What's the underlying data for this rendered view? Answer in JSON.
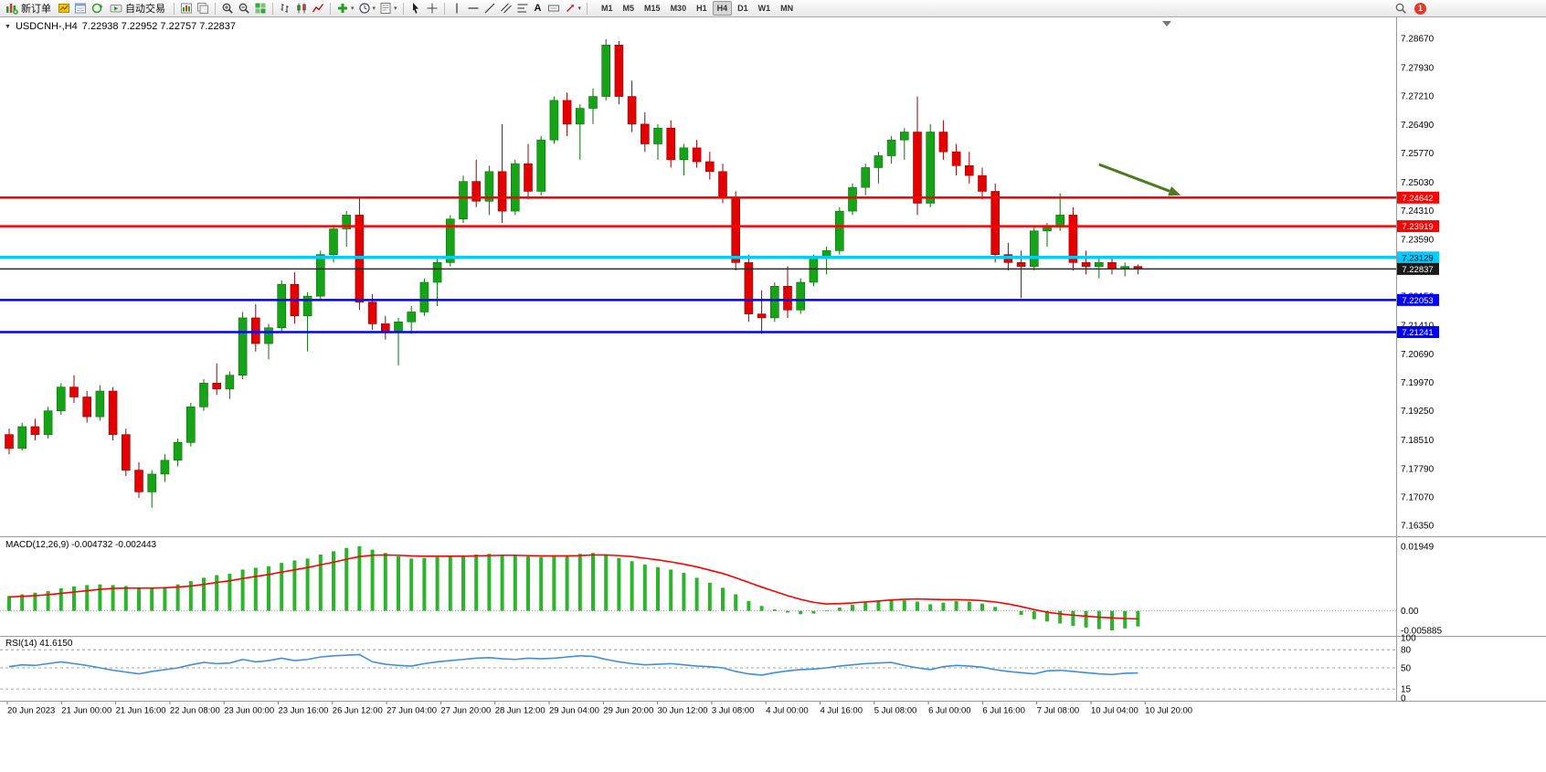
{
  "toolbar": {
    "new_order_label": "新订单",
    "auto_trading_label": "自动交易",
    "text_tool_label": "A",
    "timeframes": [
      "M1",
      "M5",
      "M15",
      "M30",
      "H1",
      "H4",
      "D1",
      "W1",
      "MN"
    ],
    "active_timeframe": "H4",
    "notification_count": "1"
  },
  "chart": {
    "symbol_period": "USDCNH-,H4",
    "ohlc_text": "7.22938 7.22952 7.22757 7.22837"
  },
  "chart_data": [
    {
      "type": "candlestick",
      "title": "USDCNH-,H4",
      "symbol": "USDCNH-",
      "timeframe": "H4",
      "current_open": "7.22938",
      "current_high": "7.22952",
      "current_low": "7.22757",
      "current_close": "7.22837",
      "up_color": "#17A317",
      "down_color": "#E50000",
      "up_stroke": "#0A700A",
      "down_stroke": "#9B0000",
      "y_max": 7.292,
      "y_min": 7.161,
      "y_axis_labels": [
        "7.28670",
        "7.27930",
        "7.27210",
        "7.26490",
        "7.25770",
        "7.25030",
        "7.24310",
        "7.23590",
        "7.22870",
        "7.22150",
        "7.21410",
        "7.20690",
        "7.19970",
        "7.19250",
        "7.18510",
        "7.17790",
        "7.17070",
        "7.16350"
      ],
      "x_labels": [
        "20 Jun 2023",
        "21 Jun 00:00",
        "21 Jun 16:00",
        "22 Jun 08:00",
        "23 Jun 00:00",
        "23 Jun 16:00",
        "26 Jun 12:00",
        "27 Jun 04:00",
        "27 Jun 20:00",
        "28 Jun 12:00",
        "29 Jun 04:00",
        "29 Jun 20:00",
        "30 Jun 12:00",
        "3 Jul 08:00",
        "4 Jul 00:00",
        "4 Jul 16:00",
        "5 Jul 08:00",
        "6 Jul 00:00",
        "6 Jul 16:00",
        "7 Jul 08:00",
        "10 Jul 04:00",
        "10 Jul 20:00"
      ],
      "hlines": [
        {
          "price": 7.24642,
          "label": "7.24642",
          "color": "#FF0000",
          "width": 2.5,
          "tag_bg": "#FF0000",
          "tag_fg": "#FFFFFF"
        },
        {
          "price": 7.23919,
          "label": "7.23919",
          "color": "#FF0000",
          "width": 2.5,
          "tag_bg": "#FF0000",
          "tag_fg": "#FFFFFF"
        },
        {
          "price": 7.23129,
          "label": "7.23129",
          "color": "#00CCFF",
          "width": 3.5,
          "tag_bg": "#00CCFF",
          "tag_fg": "#000000"
        },
        {
          "price": 7.22837,
          "label": "7.22837",
          "color": "#2B2B2B",
          "width": 1.5,
          "tag_bg": "#1A1A1A",
          "tag_fg": "#FFFFFF"
        },
        {
          "price": 7.22053,
          "label": "7.22053",
          "color": "#0000FF",
          "width": 2.5,
          "tag_bg": "#0000FF",
          "tag_fg": "#FFFFFF"
        },
        {
          "price": 7.21241,
          "label": "7.21241",
          "color": "#0000FF",
          "width": 2.5,
          "tag_bg": "#0000FF",
          "tag_fg": "#FFFFFF"
        }
      ],
      "arrow": {
        "from_bar": 84,
        "from_price": 7.2548,
        "to_bar": 90.3,
        "to_price": 7.247,
        "color": "#4C7A1F",
        "width": 3
      },
      "candles": [
        [
          7.1865,
          7.188,
          7.1815,
          7.183
        ],
        [
          7.183,
          7.1895,
          7.1825,
          7.1885
        ],
        [
          7.1885,
          7.1905,
          7.185,
          7.1865
        ],
        [
          7.1865,
          7.1935,
          7.1855,
          7.1925
        ],
        [
          7.1925,
          7.1995,
          7.1915,
          7.1985
        ],
        [
          7.1985,
          7.2015,
          7.1945,
          7.196
        ],
        [
          7.196,
          7.1975,
          7.1895,
          7.191
        ],
        [
          7.191,
          7.199,
          7.19,
          7.1975
        ],
        [
          7.1975,
          7.1985,
          7.185,
          7.1865
        ],
        [
          7.1865,
          7.188,
          7.176,
          7.1775
        ],
        [
          7.1775,
          7.1795,
          7.1705,
          7.172
        ],
        [
          7.172,
          7.1775,
          7.168,
          7.1765
        ],
        [
          7.1765,
          7.1815,
          7.1745,
          7.18
        ],
        [
          7.18,
          7.1855,
          7.1785,
          7.1845
        ],
        [
          7.1845,
          7.1945,
          7.1835,
          7.1935
        ],
        [
          7.1935,
          7.2005,
          7.1925,
          7.1995
        ],
        [
          7.1995,
          7.2045,
          7.1965,
          7.198
        ],
        [
          7.198,
          7.2025,
          7.1955,
          7.2015
        ],
        [
          7.2015,
          7.2175,
          7.2005,
          7.216
        ],
        [
          7.216,
          7.2195,
          7.2075,
          7.2095
        ],
        [
          7.2095,
          7.2145,
          7.2055,
          7.2135
        ],
        [
          7.2135,
          7.2255,
          7.2125,
          7.2245
        ],
        [
          7.2245,
          7.2275,
          7.2145,
          7.2165
        ],
        [
          7.2165,
          7.2225,
          7.2075,
          7.2215
        ],
        [
          7.2215,
          7.233,
          7.2205,
          7.232
        ],
        [
          7.232,
          7.2395,
          7.23,
          7.2385
        ],
        [
          7.2385,
          7.243,
          7.234,
          7.242
        ],
        [
          7.242,
          7.2465,
          7.218,
          7.22
        ],
        [
          7.22,
          7.222,
          7.213,
          7.2145
        ],
        [
          7.2145,
          7.2165,
          7.2105,
          7.2125
        ],
        [
          7.2125,
          7.216,
          7.204,
          7.215
        ],
        [
          7.215,
          7.219,
          7.212,
          7.2175
        ],
        [
          7.2175,
          7.226,
          7.2165,
          7.225
        ],
        [
          7.225,
          7.231,
          7.219,
          7.23
        ],
        [
          7.23,
          7.242,
          7.229,
          7.241
        ],
        [
          7.241,
          7.252,
          7.24,
          7.2505
        ],
        [
          7.2505,
          7.256,
          7.244,
          7.2455
        ],
        [
          7.2455,
          7.2545,
          7.242,
          7.253
        ],
        [
          7.253,
          7.265,
          7.24,
          7.243
        ],
        [
          7.243,
          7.256,
          7.242,
          7.255
        ],
        [
          7.255,
          7.26,
          7.246,
          7.248
        ],
        [
          7.248,
          7.262,
          7.247,
          7.261
        ],
        [
          7.261,
          7.272,
          7.26,
          7.271
        ],
        [
          7.271,
          7.273,
          7.262,
          7.265
        ],
        [
          7.265,
          7.27,
          7.256,
          7.269
        ],
        [
          7.269,
          7.274,
          7.265,
          7.272
        ],
        [
          7.272,
          7.2865,
          7.271,
          7.285
        ],
        [
          7.285,
          7.286,
          7.27,
          7.272
        ],
        [
          7.272,
          7.276,
          7.263,
          7.265
        ],
        [
          7.265,
          7.268,
          7.258,
          7.26
        ],
        [
          7.26,
          7.265,
          7.256,
          7.264
        ],
        [
          7.264,
          7.266,
          7.254,
          7.256
        ],
        [
          7.256,
          7.26,
          7.252,
          7.259
        ],
        [
          7.259,
          7.261,
          7.254,
          7.2555
        ],
        [
          7.2555,
          7.258,
          7.251,
          7.253
        ],
        [
          7.253,
          7.255,
          7.245,
          7.2465
        ],
        [
          7.2465,
          7.248,
          7.228,
          7.23
        ],
        [
          7.23,
          7.232,
          7.215,
          7.217
        ],
        [
          7.217,
          7.223,
          7.212,
          7.216
        ],
        [
          7.216,
          7.225,
          7.215,
          7.224
        ],
        [
          7.224,
          7.229,
          7.216,
          7.218
        ],
        [
          7.218,
          7.226,
          7.217,
          7.225
        ],
        [
          7.225,
          7.232,
          7.224,
          7.231
        ],
        [
          7.231,
          7.234,
          7.227,
          7.233
        ],
        [
          7.233,
          7.244,
          7.232,
          7.243
        ],
        [
          7.243,
          7.25,
          7.242,
          7.249
        ],
        [
          7.249,
          7.255,
          7.247,
          7.254
        ],
        [
          7.254,
          7.258,
          7.25,
          7.257
        ],
        [
          7.257,
          7.262,
          7.255,
          7.261
        ],
        [
          7.261,
          7.264,
          7.256,
          7.263
        ],
        [
          7.263,
          7.272,
          7.242,
          7.245
        ],
        [
          7.245,
          7.265,
          7.244,
          7.263
        ],
        [
          7.263,
          7.266,
          7.256,
          7.258
        ],
        [
          7.258,
          7.26,
          7.252,
          7.2545
        ],
        [
          7.2545,
          7.258,
          7.25,
          7.252
        ],
        [
          7.252,
          7.254,
          7.246,
          7.248
        ],
        [
          7.248,
          7.25,
          7.23,
          7.232
        ],
        [
          7.232,
          7.235,
          7.228,
          7.23
        ],
        [
          7.23,
          7.233,
          7.221,
          7.229
        ],
        [
          7.229,
          7.239,
          7.228,
          7.238
        ],
        [
          7.238,
          7.24,
          7.234,
          7.239
        ],
        [
          7.239,
          7.2475,
          7.238,
          7.242
        ],
        [
          7.242,
          7.244,
          7.228,
          7.23
        ],
        [
          7.23,
          7.233,
          7.227,
          7.229
        ],
        [
          7.229,
          7.231,
          7.226,
          7.23
        ],
        [
          7.23,
          7.231,
          7.227,
          7.2285
        ],
        [
          7.2285,
          7.23,
          7.2265,
          7.229
        ],
        [
          7.229,
          7.2295,
          7.227,
          7.2284
        ]
      ]
    },
    {
      "type": "bar",
      "subtype": "macd",
      "title": "MACD(12,26,9)",
      "label": "MACD(12,26,9)",
      "values_text": "-0.004732 -0.002443",
      "histogram_color": "#2DB42D",
      "signal_color": "#FF0000",
      "y_max": 0.01949,
      "y_min": -0.005885,
      "y_labels": {
        "max": "0.01949",
        "zero": "0.00",
        "min": "-0.005885"
      },
      "histogram": [
        0.0045,
        0.005,
        0.0055,
        0.006,
        0.0068,
        0.0074,
        0.0078,
        0.008,
        0.0078,
        0.0075,
        0.007,
        0.0068,
        0.0072,
        0.008,
        0.009,
        0.01,
        0.0108,
        0.0112,
        0.0125,
        0.013,
        0.0135,
        0.0145,
        0.0152,
        0.0158,
        0.017,
        0.018,
        0.019,
        0.0195,
        0.0185,
        0.0175,
        0.0165,
        0.0158,
        0.016,
        0.0163,
        0.0165,
        0.0168,
        0.017,
        0.0172,
        0.017,
        0.0168,
        0.0165,
        0.0163,
        0.0165,
        0.0168,
        0.0172,
        0.0175,
        0.017,
        0.016,
        0.015,
        0.014,
        0.0132,
        0.0125,
        0.0115,
        0.01,
        0.0085,
        0.007,
        0.005,
        0.003,
        0.0015,
        0.0005,
        -0.0005,
        -0.001,
        -0.0008,
        0.0002,
        0.001,
        0.0018,
        0.0025,
        0.003,
        0.0035,
        0.0032,
        0.0028,
        0.002,
        0.0025,
        0.003,
        0.0028,
        0.0022,
        0.0012,
        0.0,
        -0.0012,
        -0.0025,
        -0.0032,
        -0.0038,
        -0.0045,
        -0.005,
        -0.0055,
        -0.0059,
        -0.0053,
        -0.0047
      ],
      "signal": [
        0.0042,
        0.0044,
        0.0046,
        0.0049,
        0.0053,
        0.0057,
        0.0061,
        0.0065,
        0.0068,
        0.0069,
        0.0069,
        0.0069,
        0.007,
        0.0072,
        0.0075,
        0.008,
        0.0086,
        0.0091,
        0.0098,
        0.0104,
        0.011,
        0.0117,
        0.0124,
        0.0131,
        0.0139,
        0.0147,
        0.0156,
        0.0164,
        0.0168,
        0.0169,
        0.0168,
        0.0166,
        0.0165,
        0.0165,
        0.0165,
        0.0165,
        0.0166,
        0.0167,
        0.0168,
        0.0168,
        0.0167,
        0.0166,
        0.0166,
        0.0166,
        0.0167,
        0.0169,
        0.0169,
        0.0167,
        0.0164,
        0.0159,
        0.0154,
        0.0148,
        0.0141,
        0.0133,
        0.0123,
        0.0113,
        0.01,
        0.0086,
        0.0072,
        0.0059,
        0.0046,
        0.0035,
        0.0026,
        0.0021,
        0.0022,
        0.0024,
        0.0027,
        0.003,
        0.0033,
        0.0035,
        0.0036,
        0.0035,
        0.0034,
        0.0034,
        0.0033,
        0.0031,
        0.0027,
        0.0021,
        0.0013,
        0.0004,
        -0.0004,
        -0.0009,
        -0.0013,
        -0.0016,
        -0.0019,
        -0.0021,
        -0.0023,
        -0.0024
      ]
    },
    {
      "type": "line",
      "subtype": "rsi",
      "title": "RSI(14)",
      "label": "RSI(14)",
      "value_text": "41.6150",
      "line_color": "#3E8EDE",
      "levels": [
        80,
        50,
        15
      ],
      "y_labels": [
        "100",
        "80",
        "50",
        "15",
        "0"
      ],
      "y_max": 100,
      "y_min": 0,
      "values": [
        52,
        55,
        54,
        57,
        60,
        57,
        54,
        50,
        46,
        43,
        40,
        44,
        47,
        50,
        55,
        59,
        57,
        58,
        64,
        60,
        62,
        66,
        62,
        64,
        68,
        70,
        71,
        72,
        60,
        56,
        54,
        53,
        57,
        60,
        62,
        64,
        66,
        67,
        65,
        64,
        66,
        65,
        66,
        68,
        70,
        69,
        64,
        60,
        57,
        55,
        56,
        57,
        55,
        53,
        52,
        50,
        44,
        40,
        38,
        42,
        45,
        47,
        48,
        50,
        53,
        55,
        57,
        58,
        59,
        54,
        50,
        47,
        52,
        54,
        53,
        51,
        47,
        44,
        42,
        40,
        45,
        46,
        44,
        42,
        40,
        39,
        41,
        41.6
      ]
    }
  ]
}
